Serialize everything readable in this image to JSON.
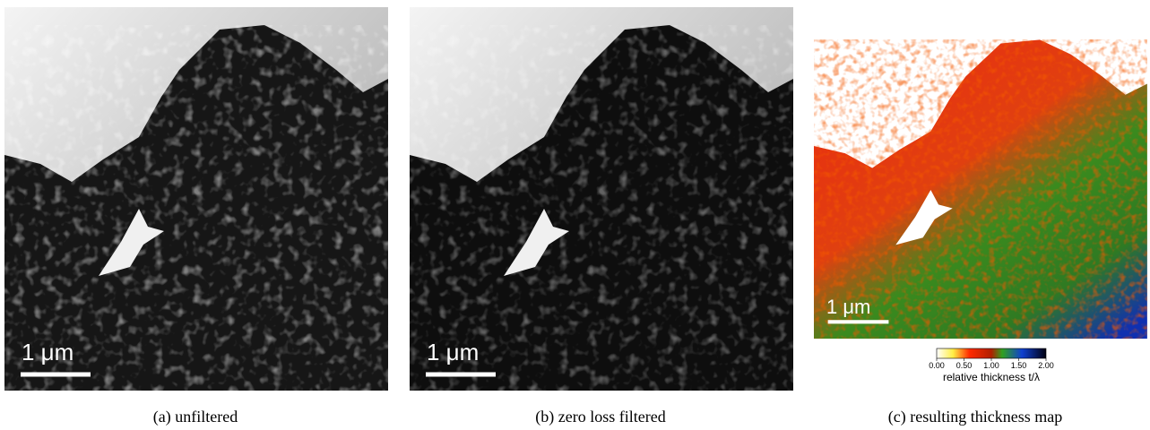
{
  "panels": [
    {
      "caption": "(a) unfiltered",
      "scale_bar": "1 μm"
    },
    {
      "caption": "(b) zero loss filtered",
      "scale_bar": "1 μm"
    },
    {
      "caption": "(c) resulting thickness map",
      "scale_bar": "1 μm",
      "colorbar": {
        "ticks": [
          "0.00",
          "0.50",
          "1.00",
          "1.50",
          "2.00"
        ],
        "label": "relative thickness t/λ"
      }
    }
  ]
}
